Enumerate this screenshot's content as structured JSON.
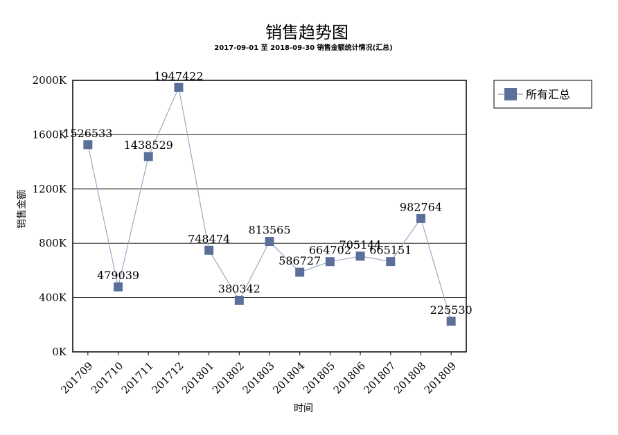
{
  "chart_data": {
    "type": "line",
    "title": "销售趋势图",
    "subtitle": "2017-09-01 至 2018-09-30  销售金额统计情况(汇总)",
    "xlabel": "时间",
    "ylabel": "销售金额",
    "categories": [
      "201709",
      "201710",
      "201711",
      "201712",
      "201801",
      "201802",
      "201803",
      "201804",
      "201805",
      "201806",
      "201807",
      "201808",
      "201809"
    ],
    "ylim": [
      0,
      2000000
    ],
    "yticks": [
      {
        "value": 0,
        "label": "0K"
      },
      {
        "value": 400000,
        "label": "400K"
      },
      {
        "value": 800000,
        "label": "800K"
      },
      {
        "value": 1200000,
        "label": "1200K"
      },
      {
        "value": 1600000,
        "label": "1600K"
      },
      {
        "value": 2000000,
        "label": "2000K"
      }
    ],
    "grid": true,
    "legend_position": "top-right",
    "series": [
      {
        "name": "所有汇总",
        "color": "#5b7098",
        "line_color": "#9aa8c4",
        "values": [
          1526533,
          479039,
          1438529,
          1947422,
          748474,
          380342,
          813565,
          586727,
          664702,
          705144,
          665151,
          982764,
          225530
        ],
        "labels": [
          "1526533",
          "479039",
          "1438529",
          "1947422",
          "748474",
          "380342",
          "813565",
          "586727",
          "664702",
          "705144",
          "665151",
          "982764",
          "225530"
        ]
      }
    ]
  }
}
